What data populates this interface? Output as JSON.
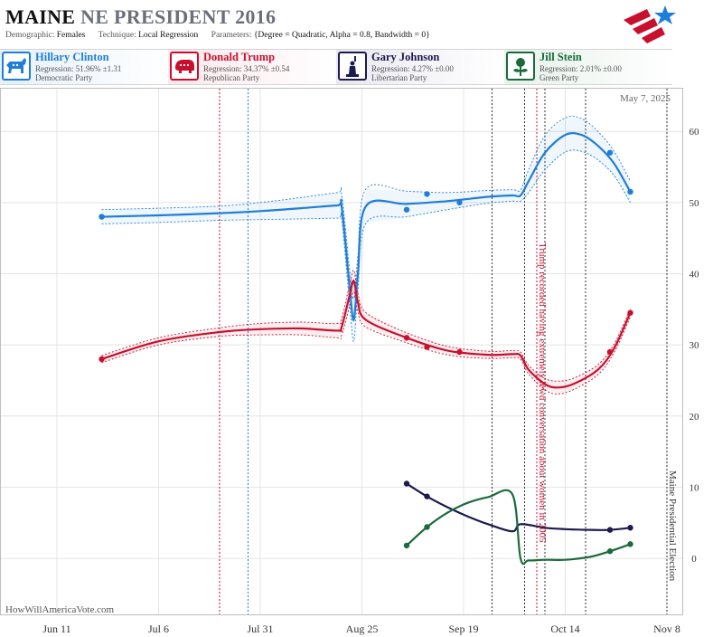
{
  "header": {
    "state": "MAINE",
    "title_rest": "NE PRESIDENT 2016",
    "demographic_label": "Demographic:",
    "demographic": "Females",
    "technique_label": "Technique:",
    "technique": "Local Regression",
    "parameters_label": "Parameters:",
    "parameters": "{Degree = Quadratic, Alpha = 0.8, Bandwidth = 0}"
  },
  "candidates": [
    {
      "name": "Hillary Clinton",
      "regression": "Regression: 51.96% ±1.31",
      "party": "Democratic Party",
      "color": "#1f7ed8",
      "icon": "donkey-icon"
    },
    {
      "name": "Donald Trump",
      "regression": "Regression: 34.37% ±0.54",
      "party": "Republican Party",
      "color": "#c8102e",
      "icon": "elephant-icon"
    },
    {
      "name": "Gary Johnson",
      "regression": "Regression: 4.27% ±0.00",
      "party": "Libertarian Party",
      "color": "#1c1a4f",
      "icon": "statue-of-liberty-icon"
    },
    {
      "name": "Jill Stein",
      "regression": "Regression: 2.01% ±0.00",
      "party": "Green Party",
      "color": "#1a6b3c",
      "icon": "rose-icon"
    }
  ],
  "footer": {
    "site": "HowWillAmericaVote.com"
  },
  "chart_data": {
    "type": "line",
    "date_stamp": "May 7, 2025",
    "x_ticks": [
      "Jun 11",
      "Jul 6",
      "Jul 31",
      "Aug 25",
      "Sep 19",
      "Oct 14",
      "Nov 8"
    ],
    "x_range": [
      "2016-05-28",
      "2016-11-12"
    ],
    "ylim": [
      -8,
      66
    ],
    "y_ticks": [
      0,
      10,
      20,
      30,
      40,
      50,
      60
    ],
    "grid": true,
    "annotations": [
      {
        "text": "Trump recorded having extremely lewd conversation about women in 2005",
        "date": "2016-10-07",
        "color": "#c8102e"
      },
      {
        "text": "Maine Presidential Election",
        "date": "2016-11-08",
        "color": "#333333"
      }
    ],
    "event_lines": [
      {
        "date": "2016-07-21",
        "color": "#c8102e"
      },
      {
        "date": "2016-07-28",
        "color": "#1f7ed8"
      },
      {
        "date": "2016-09-26",
        "color": "#333333"
      },
      {
        "date": "2016-10-04",
        "color": "#333333"
      },
      {
        "date": "2016-10-07",
        "color": "#c8102e"
      },
      {
        "date": "2016-10-09",
        "color": "#333333"
      },
      {
        "date": "2016-10-19",
        "color": "#333333"
      },
      {
        "date": "2016-11-08",
        "color": "#333333"
      }
    ],
    "series": [
      {
        "name": "Hillary Clinton",
        "color": "#1f7ed8",
        "points": [
          [
            "2016-06-22",
            48.0
          ],
          [
            "2016-09-05",
            49.0
          ],
          [
            "2016-09-10",
            51.2
          ],
          [
            "2016-09-18",
            50.0
          ],
          [
            "2016-10-25",
            57.0
          ],
          [
            "2016-10-30",
            51.5
          ]
        ],
        "curve": [
          [
            "2016-06-22",
            48.0
          ],
          [
            "2016-07-06",
            48.2
          ],
          [
            "2016-07-21",
            48.5
          ],
          [
            "2016-07-31",
            48.8
          ],
          [
            "2016-08-10",
            49.2
          ],
          [
            "2016-08-19",
            49.6
          ],
          [
            "2016-08-20",
            49.5
          ],
          [
            "2016-08-22",
            38.0
          ],
          [
            "2016-08-23",
            33.5
          ],
          [
            "2016-08-24",
            40.0
          ],
          [
            "2016-08-26",
            49.5
          ],
          [
            "2016-09-05",
            49.8
          ],
          [
            "2016-09-15",
            50.2
          ],
          [
            "2016-09-25",
            50.8
          ],
          [
            "2016-10-01",
            51.0
          ],
          [
            "2016-10-03",
            51.0
          ],
          [
            "2016-10-05",
            53.0
          ],
          [
            "2016-10-09",
            57.0
          ],
          [
            "2016-10-14",
            59.5
          ],
          [
            "2016-10-18",
            59.5
          ],
          [
            "2016-10-22",
            58.0
          ],
          [
            "2016-10-26",
            55.5
          ],
          [
            "2016-10-30",
            51.5
          ]
        ],
        "band": [
          1.0,
          1.0,
          1.0,
          1.2,
          1.5,
          1.8,
          1.8,
          2.5,
          3.0,
          2.5,
          2.4,
          1.8,
          1.2,
          0.9,
          0.8,
          0.8,
          1.6,
          2.4,
          2.4,
          2.3,
          2.0,
          1.7,
          1.5
        ]
      },
      {
        "name": "Donald Trump",
        "color": "#c8102e",
        "points": [
          [
            "2016-06-22",
            28.0
          ],
          [
            "2016-09-05",
            31.0
          ],
          [
            "2016-09-10",
            29.7
          ],
          [
            "2016-09-18",
            29.0
          ],
          [
            "2016-10-25",
            29.0
          ],
          [
            "2016-10-30",
            34.5
          ]
        ],
        "curve": [
          [
            "2016-06-22",
            28.0
          ],
          [
            "2016-07-06",
            30.5
          ],
          [
            "2016-07-21",
            31.8
          ],
          [
            "2016-07-31",
            32.2
          ],
          [
            "2016-08-10",
            32.3
          ],
          [
            "2016-08-19",
            32.0
          ],
          [
            "2016-08-20",
            32.5
          ],
          [
            "2016-08-22",
            37.0
          ],
          [
            "2016-08-23",
            39.0
          ],
          [
            "2016-08-24",
            36.0
          ],
          [
            "2016-08-26",
            33.5
          ],
          [
            "2016-09-05",
            31.0
          ],
          [
            "2016-09-15",
            29.2
          ],
          [
            "2016-09-25",
            28.6
          ],
          [
            "2016-10-01",
            28.7
          ],
          [
            "2016-10-03",
            28.5
          ],
          [
            "2016-10-05",
            26.5
          ],
          [
            "2016-10-09",
            24.5
          ],
          [
            "2016-10-12",
            24.0
          ],
          [
            "2016-10-16",
            24.5
          ],
          [
            "2016-10-22",
            26.5
          ],
          [
            "2016-10-26",
            29.5
          ],
          [
            "2016-10-30",
            34.5
          ]
        ],
        "band": [
          0.5,
          0.5,
          0.6,
          0.8,
          0.9,
          1.0,
          1.2,
          1.5,
          1.5,
          1.3,
          1.0,
          0.7,
          0.6,
          0.5,
          0.5,
          0.5,
          0.6,
          0.8,
          0.9,
          0.8,
          0.7,
          0.6,
          0.6
        ]
      },
      {
        "name": "Gary Johnson",
        "color": "#1c1a4f",
        "points": [
          [
            "2016-09-05",
            10.5
          ],
          [
            "2016-09-10",
            8.7
          ],
          [
            "2016-10-25",
            4.0
          ],
          [
            "2016-10-30",
            4.3
          ]
        ],
        "curve": [
          [
            "2016-09-05",
            10.5
          ],
          [
            "2016-09-10",
            8.7
          ],
          [
            "2016-09-15",
            7.2
          ],
          [
            "2016-09-20",
            5.9
          ],
          [
            "2016-09-25",
            4.8
          ],
          [
            "2016-10-01",
            3.8
          ],
          [
            "2016-10-03",
            4.8
          ],
          [
            "2016-10-09",
            4.3
          ],
          [
            "2016-10-14",
            4.1
          ],
          [
            "2016-10-20",
            4.0
          ],
          [
            "2016-10-25",
            4.0
          ],
          [
            "2016-10-30",
            4.3
          ]
        ]
      },
      {
        "name": "Jill Stein",
        "color": "#1a6b3c",
        "points": [
          [
            "2016-09-05",
            1.8
          ],
          [
            "2016-09-10",
            4.4
          ],
          [
            "2016-10-25",
            1.0
          ],
          [
            "2016-10-30",
            2.0
          ]
        ],
        "curve": [
          [
            "2016-09-05",
            1.8
          ],
          [
            "2016-09-10",
            4.4
          ],
          [
            "2016-09-15",
            6.4
          ],
          [
            "2016-09-20",
            7.8
          ],
          [
            "2016-09-25",
            8.6
          ],
          [
            "2016-10-01",
            9.0
          ],
          [
            "2016-10-03",
            0.0
          ],
          [
            "2016-10-05",
            -0.3
          ],
          [
            "2016-10-09",
            -0.2
          ],
          [
            "2016-10-14",
            -0.2
          ],
          [
            "2016-10-20",
            0.2
          ],
          [
            "2016-10-25",
            1.0
          ],
          [
            "2016-10-30",
            2.0
          ]
        ]
      }
    ]
  }
}
